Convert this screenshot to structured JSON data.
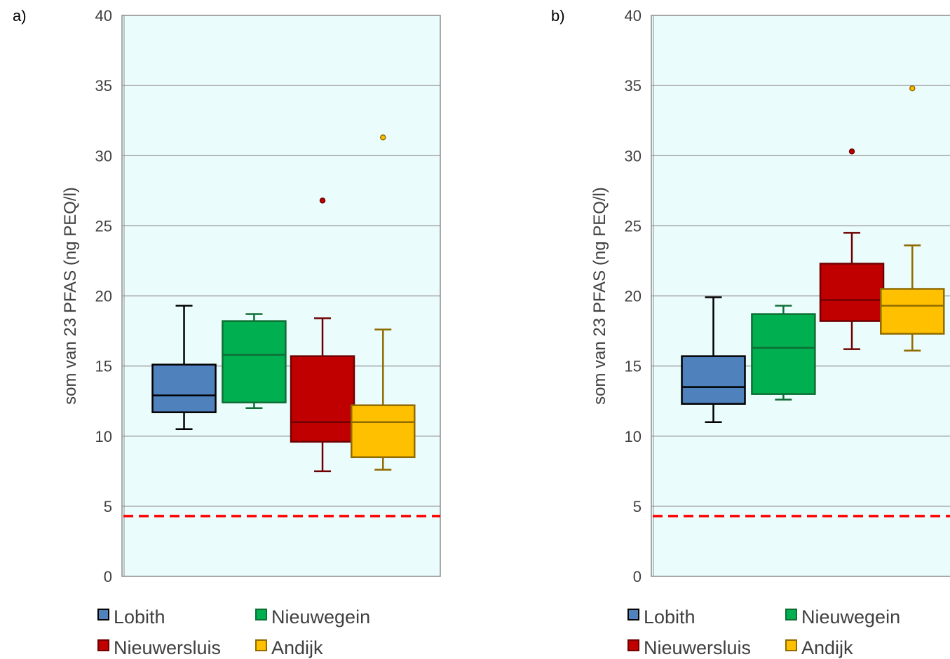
{
  "chart_data": [
    {
      "type": "box",
      "panel_label": "a)",
      "ylabel": "som van 23 PFAS (ng PEQ/l)",
      "ylim": [
        0,
        40
      ],
      "yticks": [
        0,
        5,
        10,
        15,
        20,
        25,
        30,
        35,
        40
      ],
      "grid": true,
      "background": "#ebfcfd",
      "reference_line": {
        "y": 4.3,
        "color": "#ff0000",
        "style": "dashed"
      },
      "legend": {
        "position": "bottom"
      },
      "series": [
        {
          "name": "Lobith",
          "color": "#4f81bd",
          "edge": "#000000",
          "whisker_low": 10.5,
          "q1": 11.7,
          "median": 12.9,
          "q3": 15.1,
          "whisker_high": 19.3,
          "outliers": []
        },
        {
          "name": "Nieuwegein",
          "color": "#00b050",
          "edge": "#0e6e34",
          "whisker_low": 12.0,
          "q1": 12.4,
          "median": 15.8,
          "q3": 18.2,
          "whisker_high": 18.7,
          "outliers": []
        },
        {
          "name": "Nieuwersluis",
          "color": "#c00000",
          "edge": "#6e0000",
          "whisker_low": 7.5,
          "q1": 9.6,
          "median": 11.0,
          "q3": 15.7,
          "whisker_high": 18.4,
          "outliers": [
            26.8
          ]
        },
        {
          "name": "Andijk",
          "color": "#ffc000",
          "edge": "#8f6b00",
          "whisker_low": 7.6,
          "q1": 8.5,
          "median": 11.0,
          "q3": 12.2,
          "whisker_high": 17.6,
          "outliers": [
            31.3
          ]
        }
      ]
    },
    {
      "type": "box",
      "panel_label": "b)",
      "ylabel": "som van 23 PFAS (ng PEQ/l)",
      "ylim": [
        0,
        40
      ],
      "yticks": [
        0,
        5,
        10,
        15,
        20,
        25,
        30,
        35,
        40
      ],
      "grid": true,
      "background": "#ebfcfd",
      "reference_line": {
        "y": 4.3,
        "color": "#ff0000",
        "style": "dashed"
      },
      "legend": {
        "position": "bottom"
      },
      "series": [
        {
          "name": "Lobith",
          "color": "#4f81bd",
          "edge": "#000000",
          "whisker_low": 11.0,
          "q1": 12.3,
          "median": 13.5,
          "q3": 15.7,
          "whisker_high": 19.9,
          "outliers": []
        },
        {
          "name": "Nieuwegein",
          "color": "#00b050",
          "edge": "#0e6e34",
          "whisker_low": 12.6,
          "q1": 13.0,
          "median": 16.3,
          "q3": 18.7,
          "whisker_high": 19.3,
          "outliers": []
        },
        {
          "name": "Nieuwersluis",
          "color": "#c00000",
          "edge": "#6e0000",
          "whisker_low": 16.2,
          "q1": 18.2,
          "median": 19.7,
          "q3": 22.3,
          "whisker_high": 24.5,
          "outliers": [
            30.3
          ]
        },
        {
          "name": "Andijk",
          "color": "#ffc000",
          "edge": "#8f6b00",
          "whisker_low": 16.1,
          "q1": 17.3,
          "median": 19.3,
          "q3": 20.5,
          "whisker_high": 23.6,
          "outliers": [
            34.8
          ]
        }
      ]
    }
  ]
}
